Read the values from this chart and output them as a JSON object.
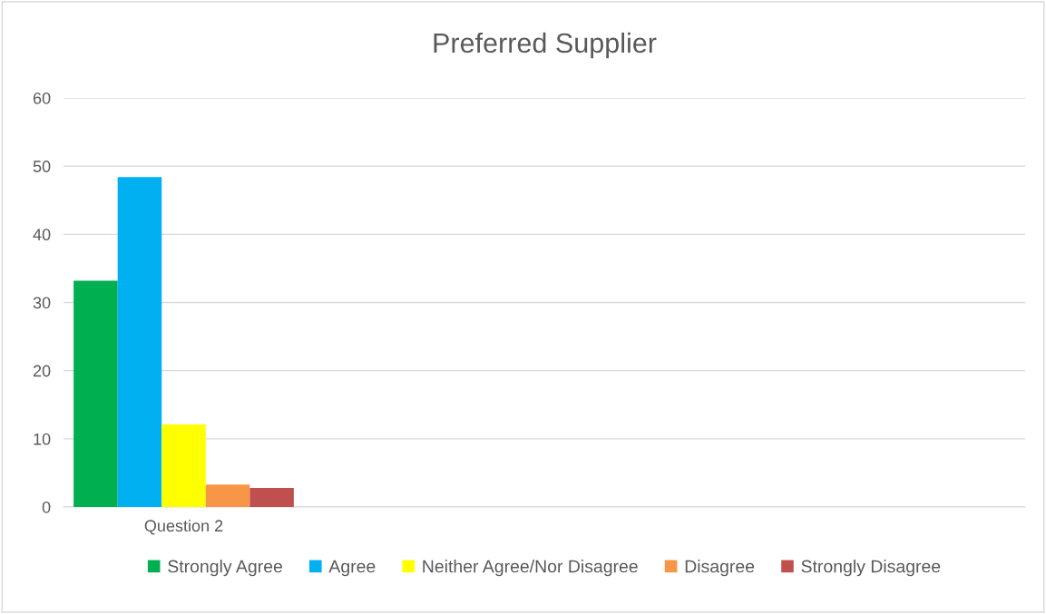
{
  "chart_data": {
    "type": "bar",
    "title": "Preferred Supplier",
    "categories": [
      "Question 2",
      null,
      null,
      null
    ],
    "series": [
      {
        "name": "Strongly Agree",
        "color": "#00b050",
        "values": [
          33.2,
          null,
          null,
          null
        ]
      },
      {
        "name": "Agree",
        "color": "#00b0f0",
        "values": [
          48.4,
          null,
          null,
          null
        ]
      },
      {
        "name": "Neither Agree/Nor Disagree",
        "color": "#ffff00",
        "values": [
          12.1,
          null,
          null,
          null
        ]
      },
      {
        "name": "Disagree",
        "color": "#f79646",
        "values": [
          3.3,
          null,
          null,
          null
        ]
      },
      {
        "name": "Strongly Disagree",
        "color": "#c0504d",
        "values": [
          2.8,
          null,
          null,
          null
        ]
      }
    ],
    "ylim": [
      0,
      60
    ],
    "yticks": [
      0,
      10,
      20,
      30,
      40,
      50,
      60
    ],
    "grid": "y",
    "legend": "bottom"
  }
}
